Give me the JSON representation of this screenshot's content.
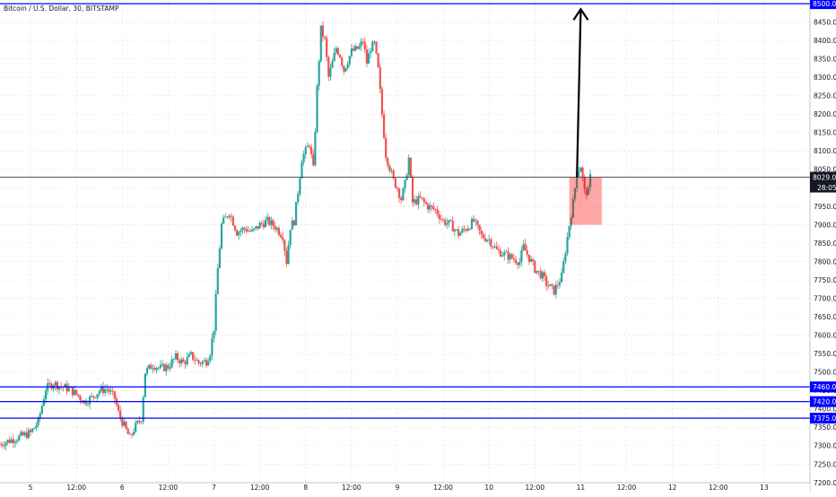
{
  "chart_data": {
    "type": "candlestick",
    "title": "Bitcoin / U.S. Dollar, 30, BITSTAMP",
    "ylim": [
      7200,
      8510
    ],
    "x_range": [
      0,
      212
    ],
    "price_ticks": [
      7200,
      7250,
      7300,
      7350,
      7400,
      7450,
      7500,
      7550,
      7600,
      7650,
      7700,
      7750,
      7800,
      7850,
      7900,
      7950,
      8000,
      8050,
      8100,
      8150,
      8200,
      8250,
      8300,
      8350,
      8400,
      8450,
      8500
    ],
    "time_ticks": [
      {
        "t": 8,
        "label": "5"
      },
      {
        "t": 20,
        "label": "12:00"
      },
      {
        "t": 32,
        "label": "6"
      },
      {
        "t": 44,
        "label": "12:00"
      },
      {
        "t": 56,
        "label": "7"
      },
      {
        "t": 68,
        "label": "12:00"
      },
      {
        "t": 80,
        "label": "8"
      },
      {
        "t": 92,
        "label": "12:00"
      },
      {
        "t": 104,
        "label": "9"
      },
      {
        "t": 116,
        "label": "12:00"
      },
      {
        "t": 128,
        "label": "10"
      },
      {
        "t": 140,
        "label": "12:00"
      },
      {
        "t": 152,
        "label": "11"
      },
      {
        "t": 164,
        "label": "12:00"
      },
      {
        "t": 176,
        "label": "12"
      },
      {
        "t": 188,
        "label": "12:00"
      },
      {
        "t": 200,
        "label": "13"
      }
    ],
    "grid": true,
    "colors": {
      "up": "#26a69a",
      "down": "#ef5350",
      "level": "#0000ff",
      "grid": "#e0e3eb"
    },
    "horizontal_levels": [
      {
        "price": 8500,
        "label": "8500.00"
      },
      {
        "price": 7460,
        "label": "7460.00"
      },
      {
        "price": 7420,
        "label": "7420.00"
      },
      {
        "price": 7375,
        "label": "7375.00"
      }
    ],
    "current_price": {
      "price": 8029,
      "label": "8029.00",
      "countdown": "28:05"
    },
    "target_arrow": {
      "from": {
        "t": 151,
        "price": 8029
      },
      "to": {
        "t": 152,
        "price": 8485
      }
    },
    "box": {
      "t0": 149,
      "t1": 157.5,
      "p_top": 8029,
      "p_bottom": 7900,
      "color": "#ff0000"
    },
    "keypoints": [
      [
        0,
        7305
      ],
      [
        4,
        7320
      ],
      [
        8,
        7335
      ],
      [
        10,
        7365
      ],
      [
        12,
        7455
      ],
      [
        14,
        7470
      ],
      [
        16,
        7460
      ],
      [
        18,
        7455
      ],
      [
        20,
        7440
      ],
      [
        22,
        7420
      ],
      [
        24,
        7430
      ],
      [
        26,
        7450
      ],
      [
        28,
        7455
      ],
      [
        30,
        7430
      ],
      [
        31,
        7390
      ],
      [
        32,
        7365
      ],
      [
        34,
        7320
      ],
      [
        35,
        7345
      ],
      [
        37,
        7375
      ],
      [
        38,
        7500
      ],
      [
        40,
        7520
      ],
      [
        42,
        7510
      ],
      [
        44,
        7515
      ],
      [
        46,
        7540
      ],
      [
        48,
        7525
      ],
      [
        50,
        7545
      ],
      [
        52,
        7525
      ],
      [
        54,
        7530
      ],
      [
        55,
        7555
      ],
      [
        56,
        7620
      ],
      [
        57,
        7780
      ],
      [
        58,
        7900
      ],
      [
        60,
        7935
      ],
      [
        62,
        7880
      ],
      [
        64,
        7890
      ],
      [
        66,
        7880
      ],
      [
        68,
        7900
      ],
      [
        70,
        7910
      ],
      [
        72,
        7895
      ],
      [
        74,
        7870
      ],
      [
        75,
        7800
      ],
      [
        76,
        7895
      ],
      [
        77,
        7910
      ],
      [
        78,
        7990
      ],
      [
        79,
        8080
      ],
      [
        80,
        8100
      ],
      [
        81,
        8120
      ],
      [
        82,
        8050
      ],
      [
        83,
        8270
      ],
      [
        84,
        8430
      ],
      [
        85,
        8400
      ],
      [
        86,
        8300
      ],
      [
        87,
        8340
      ],
      [
        88,
        8380
      ],
      [
        89,
        8360
      ],
      [
        90,
        8320
      ],
      [
        92,
        8370
      ],
      [
        94,
        8380
      ],
      [
        95,
        8400
      ],
      [
        96,
        8340
      ],
      [
        97,
        8380
      ],
      [
        98,
        8390
      ],
      [
        99,
        8320
      ],
      [
        100,
        8200
      ],
      [
        101,
        8090
      ],
      [
        103,
        8020
      ],
      [
        104,
        8000
      ],
      [
        105,
        7970
      ],
      [
        106,
        8010
      ],
      [
        107,
        8080
      ],
      [
        108,
        7960
      ],
      [
        110,
        7970
      ],
      [
        112,
        7950
      ],
      [
        114,
        7940
      ],
      [
        116,
        7910
      ],
      [
        118,
        7900
      ],
      [
        120,
        7875
      ],
      [
        122,
        7890
      ],
      [
        124,
        7910
      ],
      [
        126,
        7870
      ],
      [
        128,
        7860
      ],
      [
        130,
        7830
      ],
      [
        132,
        7820
      ],
      [
        134,
        7810
      ],
      [
        136,
        7800
      ],
      [
        137,
        7840
      ],
      [
        138,
        7820
      ],
      [
        140,
        7780
      ],
      [
        142,
        7760
      ],
      [
        143,
        7740
      ],
      [
        144,
        7730
      ],
      [
        145,
        7720
      ],
      [
        146,
        7740
      ],
      [
        147,
        7760
      ],
      [
        148,
        7830
      ],
      [
        149,
        7900
      ],
      [
        150,
        7960
      ],
      [
        151,
        8040
      ],
      [
        152,
        8060
      ],
      [
        153,
        7990
      ],
      [
        154,
        7990
      ],
      [
        154.5,
        8029
      ]
    ]
  }
}
